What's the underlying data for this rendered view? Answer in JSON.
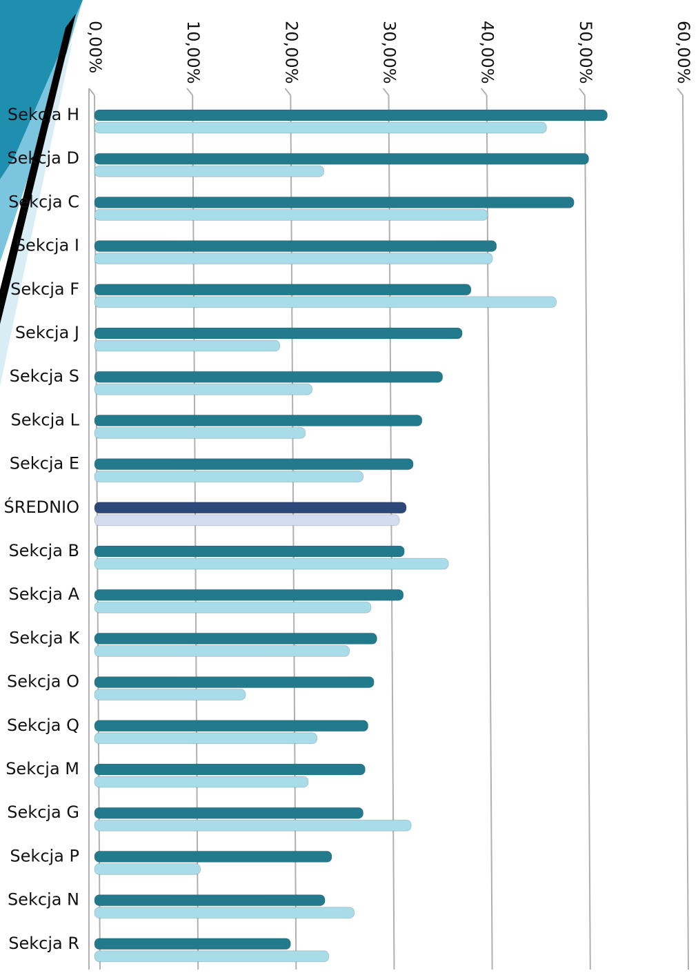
{
  "chart_data": {
    "type": "bar",
    "orientation": "horizontal",
    "categories": [
      "Sekcja H",
      "Sekcja D",
      "Sekcja C",
      "Sekcja I",
      "Sekcja F",
      "Sekcja J",
      "Sekcja S",
      "Sekcja L",
      "Sekcja E",
      "ŚREDNIO",
      "Sekcja B",
      "Sekcja A",
      "Sekcja K",
      "Sekcja O",
      "Sekcja Q",
      "Sekcja M",
      "Sekcja G",
      "Sekcja P",
      "Sekcja N",
      "Sekcja R"
    ],
    "series": [
      {
        "color": "#237a8c",
        "highlight_color": "#2c4778",
        "values": [
          52.3,
          50.4,
          48.9,
          41.0,
          38.4,
          37.5,
          35.5,
          33.4,
          32.5,
          31.8,
          31.6,
          31.5,
          28.8,
          28.5,
          27.9,
          27.6,
          27.4,
          24.2,
          23.5,
          20.0
        ]
      },
      {
        "color": "#a8dce9",
        "highlight_color": "#d3dcef",
        "values": [
          46.1,
          23.4,
          40.1,
          40.6,
          47.1,
          18.9,
          22.2,
          21.5,
          27.4,
          31.1,
          36.1,
          28.2,
          26.0,
          15.4,
          22.7,
          21.8,
          32.3,
          10.8,
          26.5,
          23.9
        ]
      }
    ],
    "highlight_category": "ŚREDNIO",
    "xlim": [
      0,
      60
    ],
    "xticks": [
      {
        "value": 0,
        "label": "0,00%"
      },
      {
        "value": 10,
        "label": "10,00%"
      },
      {
        "value": 20,
        "label": "20,00%"
      },
      {
        "value": 30,
        "label": "30,00%"
      },
      {
        "value": 40,
        "label": "40,00%"
      },
      {
        "value": 50,
        "label": "50,00%"
      },
      {
        "value": 60,
        "label": "60,00%"
      }
    ],
    "grid": true
  }
}
